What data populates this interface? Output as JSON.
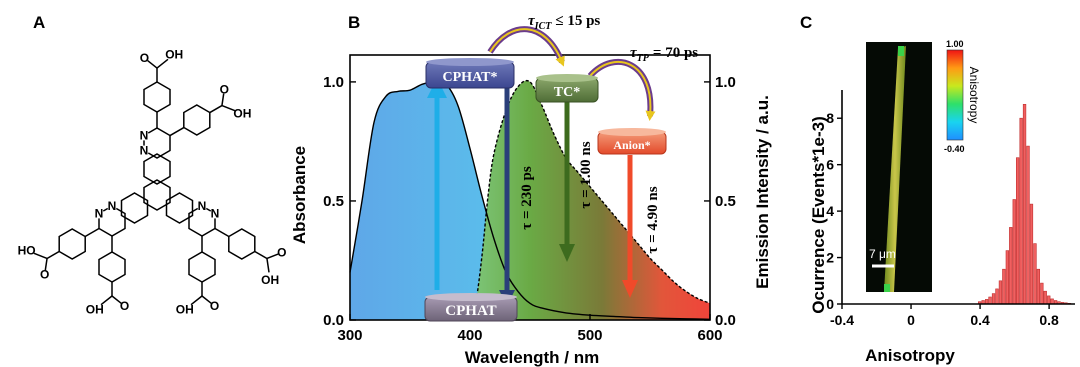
{
  "panels": {
    "a": "A",
    "b": "B",
    "c": "C"
  },
  "molecule": {
    "atom_cooh": "OH",
    "atom_o": "O",
    "atom_n": "N",
    "atom_ho": "HO"
  },
  "chart_data": [
    {
      "type": "area",
      "xlabel": "Wavelength / nm",
      "ylabel": "Absorbance",
      "y2label": "Emission Intensity / a.u.",
      "xlim": [
        300,
        600
      ],
      "ylim": [
        0,
        1.05
      ],
      "x_ticks": [
        "300",
        "400",
        "500",
        "600"
      ],
      "y_ticks": [
        "0.0",
        "0.5",
        "1.0"
      ],
      "y2_ticks": [
        "0.0",
        "0.5",
        "1.0"
      ],
      "series": [
        {
          "x": [
            300,
            310,
            320,
            330,
            340,
            350,
            360,
            370,
            380,
            390,
            400,
            410,
            420,
            430,
            440,
            450,
            460,
            480,
            500,
            520,
            540,
            560,
            580,
            600
          ],
          "values": [
            0.2,
            0.5,
            0.83,
            0.94,
            0.96,
            0.965,
            0.99,
            1.0,
            0.99,
            0.9,
            0.72,
            0.52,
            0.34,
            0.2,
            0.12,
            0.07,
            0.05,
            0.03,
            0.02,
            0.015,
            0.01,
            0.007,
            0.005,
            0.003
          ]
        },
        {
          "x": [
            400,
            405,
            410,
            415,
            420,
            430,
            440,
            450,
            460,
            470,
            480,
            490,
            500,
            510,
            520,
            530,
            540,
            550,
            560,
            570,
            580,
            590,
            600
          ],
          "values": [
            0.0,
            0.08,
            0.27,
            0.52,
            0.7,
            0.88,
            0.98,
            1.0,
            0.9,
            0.78,
            0.68,
            0.62,
            0.56,
            0.5,
            0.44,
            0.38,
            0.32,
            0.26,
            0.21,
            0.16,
            0.12,
            0.09,
            0.07
          ]
        }
      ],
      "annotations": {
        "state_cphat_excited": "CPHAT*",
        "state_cphat": "CPHAT",
        "state_tc": "TC*",
        "state_anion": "Anion*",
        "tau_ict_label": "τ",
        "tau_ict_sub": "ICT",
        "tau_ict_value": "≤ 15 ps",
        "tau_tp_label": "τ",
        "tau_tp_sub": "TP",
        "tau_tp_value": "= 70 ps",
        "tau_cphat": "τ = 230 ps",
        "tau_tc": "τ = 1.00 ns",
        "tau_anion": "τ = 4.90 ns"
      }
    },
    {
      "type": "bar",
      "xlabel": "Anisotropy",
      "ylabel": "Ocurrence (Events*1e-3)",
      "xlim": [
        -0.4,
        0.95
      ],
      "ylim": [
        0,
        9
      ],
      "x_ticks": [
        "-0.4",
        "0",
        "0.4",
        "0.8"
      ],
      "y_ticks": [
        "0",
        "2",
        "4",
        "6",
        "8"
      ],
      "x": [
        0.4,
        0.42,
        0.44,
        0.46,
        0.48,
        0.5,
        0.52,
        0.54,
        0.56,
        0.58,
        0.6,
        0.62,
        0.64,
        0.66,
        0.68,
        0.7,
        0.72,
        0.74,
        0.76,
        0.78,
        0.8,
        0.82,
        0.84,
        0.86,
        0.88,
        0.9,
        0.92
      ],
      "values": [
        0.1,
        0.15,
        0.2,
        0.3,
        0.45,
        0.65,
        1.0,
        1.5,
        2.3,
        3.3,
        4.5,
        6.3,
        8.0,
        8.6,
        6.8,
        4.3,
        2.6,
        1.5,
        0.9,
        0.55,
        0.35,
        0.22,
        0.15,
        0.1,
        0.07,
        0.05,
        0.03
      ],
      "inset": {
        "colorbar_title": "Anisotropy",
        "colorbar_max": "1.00",
        "colorbar_min": "-0.40",
        "scale_bar": "7 μm"
      }
    }
  ]
}
